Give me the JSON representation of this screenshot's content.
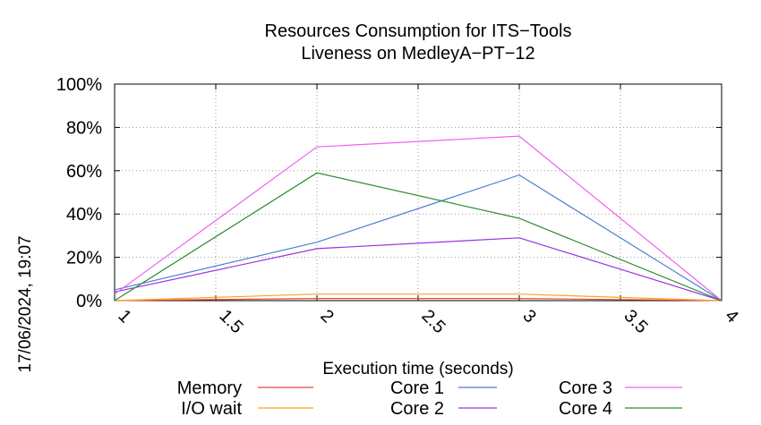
{
  "chart_data": {
    "type": "line",
    "title": "Resources Consumption for ITS−Tools",
    "subtitle": "Liveness on MedleyA−PT−12",
    "xlabel": "Execution time (seconds)",
    "ylabel": "",
    "xlim": [
      1,
      4
    ],
    "ylim": [
      0,
      100
    ],
    "x_ticks": [
      "1",
      "1.5",
      "2",
      "2.5",
      "3",
      "3.5",
      "4"
    ],
    "y_ticks": [
      "0%",
      "20%",
      "40%",
      "60%",
      "80%",
      "100%"
    ],
    "grid": true,
    "legend_position": "bottom",
    "timestamp": "17/06/2024, 19:07",
    "x": [
      1,
      2,
      3,
      4
    ],
    "series": [
      {
        "name": "Memory",
        "color": "#e8483f",
        "values": [
          0,
          1,
          1,
          0
        ]
      },
      {
        "name": "I/O wait",
        "color": "#f5a623",
        "values": [
          0,
          3,
          3,
          0
        ]
      },
      {
        "name": "Core 1",
        "color": "#4a7fd4",
        "values": [
          5,
          27,
          58,
          0
        ]
      },
      {
        "name": "Core 2",
        "color": "#9b30e0",
        "values": [
          4,
          24,
          29,
          0
        ]
      },
      {
        "name": "Core 3",
        "color": "#f060f0",
        "values": [
          3,
          71,
          76,
          0
        ]
      },
      {
        "name": "Core 4",
        "color": "#2e8b2e",
        "values": [
          0,
          59,
          38,
          0
        ]
      }
    ]
  }
}
